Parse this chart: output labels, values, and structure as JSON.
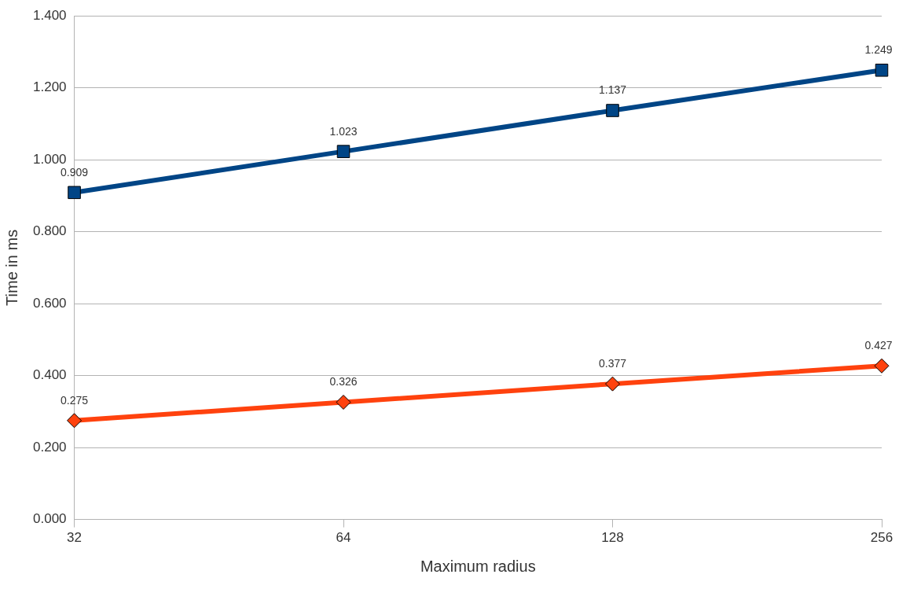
{
  "chart_data": {
    "type": "line",
    "xlabel": "Maximum radius",
    "ylabel": "Time in ms",
    "categories": [
      "32",
      "64",
      "128",
      "256"
    ],
    "series": [
      {
        "color": "#004586",
        "marker": "square",
        "values": [
          0.909,
          1.023,
          1.137,
          1.249
        ]
      },
      {
        "color": "#ff420e",
        "marker": "diamond",
        "values": [
          0.275,
          0.326,
          0.377,
          0.427
        ]
      }
    ],
    "ylim": [
      0,
      1.4
    ],
    "yticks": [
      {
        "value": 0,
        "label": "0.000"
      },
      {
        "value": 0.2,
        "label": "0.200"
      },
      {
        "value": 0.4,
        "label": "0.400"
      },
      {
        "value": 0.6,
        "label": "0.600"
      },
      {
        "value": 0.8,
        "label": "0.800"
      },
      {
        "value": 1,
        "label": "1.000"
      },
      {
        "value": 1.2,
        "label": "1.200"
      },
      {
        "value": 1.4,
        "label": "1.400"
      }
    ],
    "grid": "y",
    "legend": false,
    "data_labels": true,
    "line_style": "solid"
  }
}
